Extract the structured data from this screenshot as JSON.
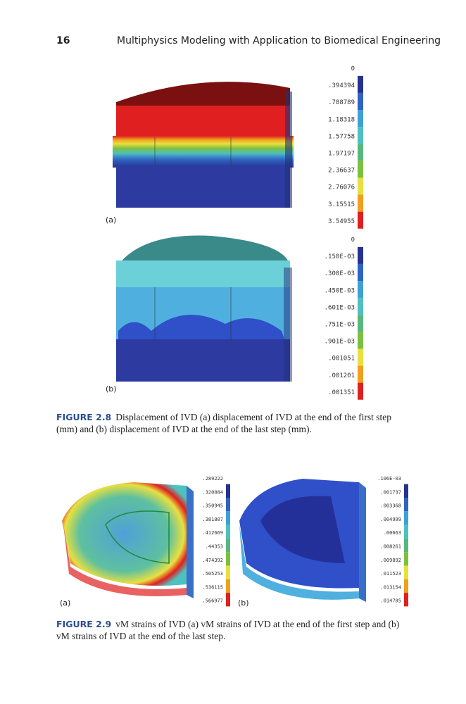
{
  "header": {
    "page": "16",
    "title": "Multiphysics Modeling with Application to Biomedical Engineering"
  },
  "figures": [
    {
      "panels": [
        {
          "label": "(a)",
          "legend": [
            "0",
            ".394394",
            ".788789",
            "1.18318",
            "1.57758",
            "1.97197",
            "2.36637",
            "2.76076",
            "3.15515",
            "3.54955"
          ]
        },
        {
          "label": "(b)",
          "legend": [
            "0",
            ".150E-03",
            ".300E-03",
            ".450E-03",
            ".601E-03",
            ".751E-03",
            ".901E-03",
            ".001051",
            ".001201",
            ".001351"
          ]
        }
      ],
      "caption": {
        "label": "FIGURE 2.8",
        "text": "Displacement of IVD (a) displacement of IVD at the end of the first step (mm) and (b) displacement of IVD at the end of the last step (mm)."
      }
    },
    {
      "panels": [
        {
          "label": "(a)",
          "legend": [
            ".289222",
            ".320084",
            ".350945",
            ".381807",
            ".412669",
            ".44353",
            ".474392",
            ".505253",
            ".536115",
            ".566977"
          ]
        },
        {
          "label": "(b)",
          "legend": [
            ".106E-03",
            ".001737",
            ".003368",
            ".004999",
            ".00663",
            ".008261",
            ".009892",
            ".011523",
            ".013154",
            ".014785"
          ]
        }
      ],
      "caption": {
        "label": "FIGURE 2.9",
        "text": "vM strains of IVD (a) vM strains of IVD at the end of the first step and (b) vM strains of IVD at the end of the last step."
      }
    }
  ]
}
